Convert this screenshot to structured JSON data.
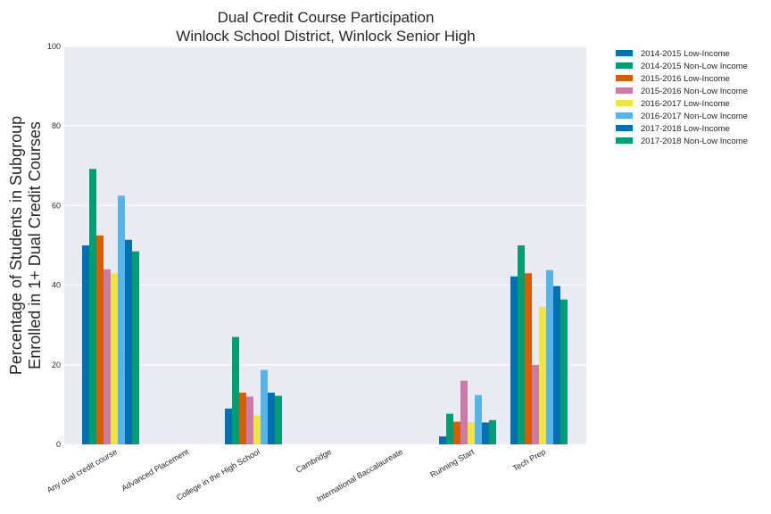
{
  "chart_data": {
    "type": "bar",
    "title": [
      "Dual Credit Course Participation",
      "Winlock School District, Winlock Senior High"
    ],
    "xlabel": "",
    "ylabel": [
      "Percentage of Students in Subgroup",
      "Enrolled in 1+ Dual Credit Courses"
    ],
    "ylim": [
      0,
      100
    ],
    "yticks": [
      0,
      20,
      40,
      60,
      80,
      100
    ],
    "grid": true,
    "legend_position": "outside-top-right",
    "categories": [
      "Any dual credit course",
      "Advanced Placement",
      "College in the High School",
      "Cambridge",
      "International Baccalaureate",
      "Running Start",
      "Tech Prep"
    ],
    "series": [
      {
        "name": "2014-2015 Low-Income",
        "color": "#0072b2",
        "values": [
          50,
          null,
          9,
          null,
          null,
          2,
          42.2
        ]
      },
      {
        "name": "2014-2015 Non-Low Income",
        "color": "#009e73",
        "values": [
          69.2,
          null,
          27,
          null,
          null,
          7.7,
          50
        ]
      },
      {
        "name": "2015-2016 Low-Income",
        "color": "#d55e00",
        "values": [
          52.5,
          null,
          13,
          null,
          null,
          5.7,
          43
        ]
      },
      {
        "name": "2015-2016 Non-Low Income",
        "color": "#cc79a7",
        "values": [
          44,
          null,
          12,
          null,
          null,
          16,
          20
        ]
      },
      {
        "name": "2016-2017 Low-Income",
        "color": "#f0e442",
        "values": [
          43,
          null,
          7.2,
          null,
          null,
          5.6,
          34.6
        ]
      },
      {
        "name": "2016-2017 Non-Low Income",
        "color": "#56b4e9",
        "values": [
          62.5,
          null,
          18.7,
          null,
          null,
          12.4,
          43.8
        ]
      },
      {
        "name": "2017-2018 Low-Income",
        "color": "#0072b2",
        "values": [
          51.4,
          null,
          13,
          null,
          null,
          5.5,
          39.8
        ]
      },
      {
        "name": "2017-2018 Non-Low Income",
        "color": "#009e73",
        "values": [
          48.5,
          null,
          12.2,
          null,
          null,
          6.1,
          36.4
        ]
      }
    ]
  }
}
